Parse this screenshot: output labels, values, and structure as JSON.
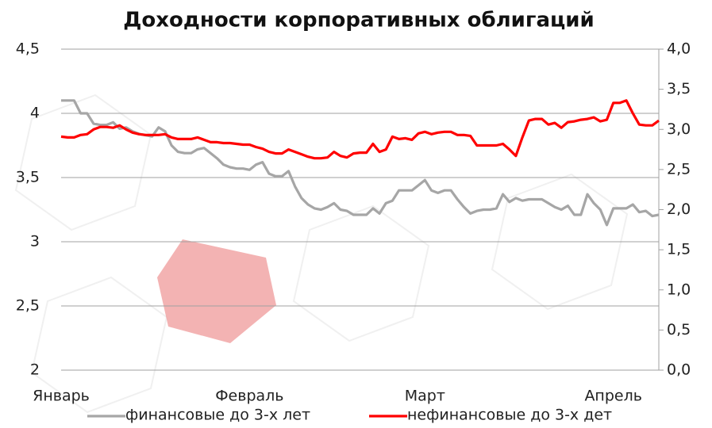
{
  "chart_data": {
    "type": "line",
    "title": "Доходности корпоративных облигаций",
    "categories": [
      "Январь",
      null,
      null,
      null,
      null,
      null,
      null,
      null,
      null,
      null,
      null,
      null,
      null,
      null,
      null,
      null,
      null,
      null,
      null,
      null,
      null,
      null,
      null,
      null,
      null,
      null,
      null,
      null,
      null,
      "Февраль",
      null,
      null,
      null,
      null,
      null,
      null,
      null,
      null,
      null,
      null,
      null,
      null,
      null,
      null,
      null,
      null,
      null,
      null,
      null,
      null,
      null,
      null,
      null,
      null,
      null,
      null,
      "Март",
      null,
      null,
      null,
      null,
      null,
      null,
      null,
      null,
      null,
      null,
      null,
      null,
      null,
      null,
      null,
      null,
      null,
      null,
      null,
      null,
      null,
      null,
      null,
      null,
      null,
      null,
      null,
      null,
      "Апрель",
      null,
      null,
      null,
      null,
      null,
      null,
      null
    ],
    "series": [
      {
        "name": "финансовые до 3-х лет",
        "color": "#a6a6a6",
        "axis": "y",
        "values": [
          4.1,
          4.1,
          4.1,
          4.0,
          4.0,
          3.92,
          3.91,
          3.91,
          3.93,
          3.88,
          3.89,
          3.86,
          3.84,
          3.83,
          3.82,
          3.89,
          3.86,
          3.75,
          3.7,
          3.69,
          3.69,
          3.72,
          3.73,
          3.69,
          3.65,
          3.6,
          3.58,
          3.57,
          3.57,
          3.56,
          3.6,
          3.62,
          3.53,
          3.51,
          3.51,
          3.55,
          3.43,
          3.34,
          3.29,
          3.26,
          3.25,
          3.27,
          3.3,
          3.25,
          3.24,
          3.21,
          3.21,
          3.21,
          3.26,
          3.22,
          3.3,
          3.32,
          3.4,
          3.4,
          3.4,
          3.44,
          3.48,
          3.4,
          3.38,
          3.4,
          3.4,
          3.33,
          3.27,
          3.22,
          3.24,
          3.25,
          3.25,
          3.26,
          3.37,
          3.31,
          3.34,
          3.32,
          3.33,
          3.33,
          3.33,
          3.3,
          3.27,
          3.25,
          3.28,
          3.21,
          3.21,
          3.37,
          3.3,
          3.25,
          3.13,
          3.26,
          3.26,
          3.26,
          3.29,
          3.23,
          3.24,
          3.2,
          3.21
        ]
      },
      {
        "name": "нефинансовые до 3-х дет",
        "color": "#ff0000",
        "axis": "y2",
        "values": [
          2.91,
          2.9,
          2.9,
          2.93,
          2.94,
          3.0,
          3.03,
          3.03,
          3.02,
          3.05,
          3.0,
          2.96,
          2.94,
          2.93,
          2.93,
          2.93,
          2.94,
          2.9,
          2.88,
          2.88,
          2.88,
          2.9,
          2.87,
          2.84,
          2.84,
          2.83,
          2.83,
          2.82,
          2.81,
          2.81,
          2.78,
          2.76,
          2.72,
          2.7,
          2.7,
          2.75,
          2.72,
          2.69,
          2.66,
          2.64,
          2.64,
          2.65,
          2.72,
          2.67,
          2.65,
          2.7,
          2.71,
          2.71,
          2.82,
          2.72,
          2.75,
          2.91,
          2.88,
          2.89,
          2.87,
          2.95,
          2.97,
          2.94,
          2.96,
          2.97,
          2.97,
          2.93,
          2.93,
          2.92,
          2.8,
          2.8,
          2.8,
          2.8,
          2.82,
          2.75,
          2.67,
          2.9,
          3.11,
          3.13,
          3.13,
          3.06,
          3.08,
          3.02,
          3.09,
          3.1,
          3.12,
          3.13,
          3.15,
          3.1,
          3.12,
          3.33,
          3.33,
          3.36,
          3.2,
          3.06,
          3.05,
          3.05,
          3.11
        ]
      }
    ],
    "ylim": [
      2,
      4.5
    ],
    "yticks": [
      2,
      {
        "value": 2.5,
        "label": "2,5"
      },
      3,
      {
        "value": 3.5,
        "label": "3,5"
      },
      4,
      {
        "value": 4.5,
        "label": "4,5"
      }
    ],
    "y2lim": [
      0,
      4
    ],
    "y2ticks": [
      {
        "value": 0,
        "label": "0,0"
      },
      {
        "value": 0.5,
        "label": "0,5"
      },
      {
        "value": 1,
        "label": "1,0"
      },
      {
        "value": 1.5,
        "label": "1,5"
      },
      {
        "value": 2,
        "label": "2,0"
      },
      {
        "value": 2.5,
        "label": "2,5"
      },
      {
        "value": 3,
        "label": "3,0"
      },
      {
        "value": 3.5,
        "label": "3,5"
      },
      {
        "value": 4,
        "label": "4,0"
      }
    ],
    "grid": true,
    "legend": "bottom"
  }
}
